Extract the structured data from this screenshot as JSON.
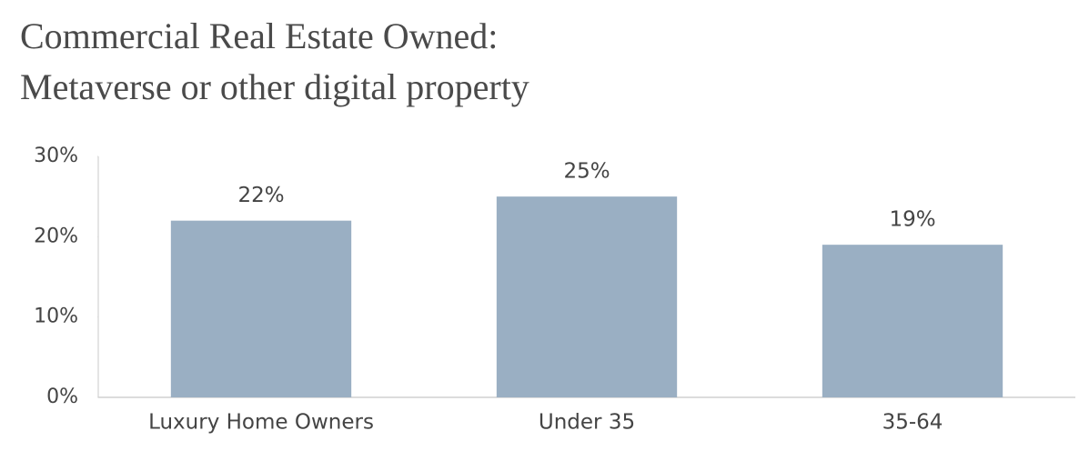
{
  "chart_data": {
    "type": "bar",
    "title": "Commercial Real Estate Owned:",
    "subtitle": "Metaverse or other digital property",
    "categories": [
      "Luxury Home Owners",
      "Under 35",
      "35-64"
    ],
    "values": [
      22,
      25,
      19
    ],
    "value_labels": [
      "22%",
      "25%",
      "19%"
    ],
    "color": "#9aafc3",
    "ylim": [
      0,
      30
    ],
    "yticks": [
      {
        "value": 0,
        "label": "0%"
      },
      {
        "value": 10,
        "label": "10%"
      },
      {
        "value": 20,
        "label": "20%"
      },
      {
        "value": 30,
        "label": "30%"
      }
    ],
    "grid": false
  }
}
